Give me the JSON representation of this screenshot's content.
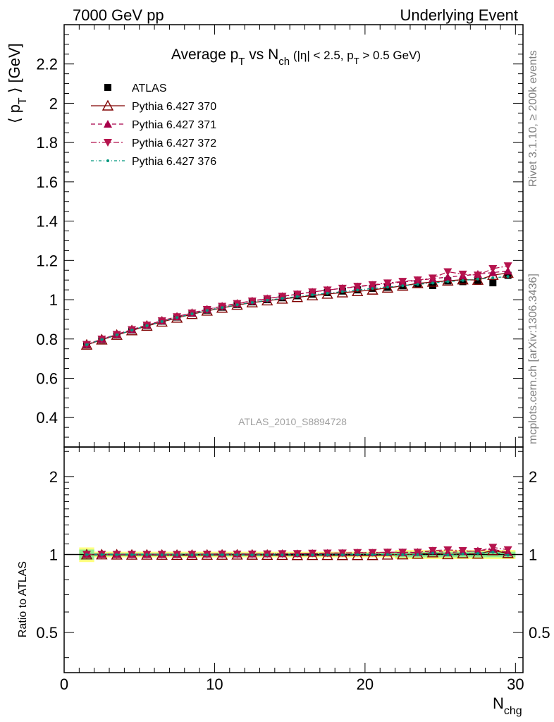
{
  "header": {
    "left": "7000 GeV pp",
    "right": "Underlying Event"
  },
  "side_text": {
    "rivet": "Rivet 3.1.10, ≥ 200k events",
    "mcplots": "mcplots.cern.ch [arXiv:1306.3436]"
  },
  "analysis_label": "ATLAS_2010_S8894728",
  "chart_data": [
    {
      "type": "line",
      "title": "Average p_T vs N_ch (|η| < 2.5, p_T > 0.5 GeV)",
      "xlabel": "N_chg",
      "ylabel": "⟨ p_T ⟩ [GeV]",
      "xlim": [
        0,
        30.5
      ],
      "ylim": [
        0.25,
        2.4
      ],
      "x": [
        1.5,
        2.5,
        3.5,
        4.5,
        5.5,
        6.5,
        7.5,
        8.5,
        9.5,
        10.5,
        11.5,
        12.5,
        13.5,
        14.5,
        15.5,
        16.5,
        17.5,
        18.5,
        19.5,
        20.5,
        21.5,
        22.5,
        23.5,
        24.5,
        25.5,
        26.5,
        27.5,
        28.5,
        29.5
      ],
      "series": [
        {
          "name": "ATLAS",
          "color": "#000000",
          "marker": "square",
          "values": [
            0.771,
            0.797,
            0.822,
            0.846,
            0.869,
            0.891,
            0.912,
            0.931,
            0.947,
            0.962,
            0.976,
            0.989,
            1.0,
            1.01,
            1.02,
            1.028,
            1.036,
            1.044,
            1.05,
            1.058,
            1.063,
            1.071,
            1.078,
            1.072,
            1.096,
            1.092,
            1.094,
            1.086,
            1.124
          ]
        },
        {
          "name": "Pythia 6.427 370",
          "color": "#800000",
          "marker": "open-triangle-up",
          "line": "solid",
          "values": [
            0.77,
            0.796,
            0.82,
            0.843,
            0.866,
            0.887,
            0.907,
            0.926,
            0.943,
            0.958,
            0.973,
            0.985,
            0.995,
            1.004,
            1.012,
            1.021,
            1.029,
            1.036,
            1.042,
            1.05,
            1.06,
            1.07,
            1.083,
            1.09,
            1.096,
            1.102,
            1.1,
            1.125,
            1.136
          ]
        },
        {
          "name": "Pythia 6.427 371",
          "color": "#a8004a",
          "marker": "filled-triangle-up",
          "line": "dashed",
          "values": [
            0.773,
            0.799,
            0.824,
            0.848,
            0.871,
            0.893,
            0.914,
            0.933,
            0.951,
            0.967,
            0.981,
            0.994,
            1.006,
            1.017,
            1.028,
            1.039,
            1.049,
            1.058,
            1.066,
            1.074,
            1.082,
            1.09,
            1.098,
            1.107,
            1.115,
            1.122,
            1.13,
            1.138,
            1.146
          ]
        },
        {
          "name": "Pythia 6.427 372",
          "color": "#b5134d",
          "marker": "filled-triangle-down",
          "line": "dashdot",
          "values": [
            0.772,
            0.799,
            0.823,
            0.847,
            0.87,
            0.892,
            0.913,
            0.932,
            0.95,
            0.966,
            0.98,
            0.993,
            1.005,
            1.017,
            1.028,
            1.039,
            1.049,
            1.058,
            1.068,
            1.076,
            1.085,
            1.093,
            1.1,
            1.11,
            1.142,
            1.13,
            1.125,
            1.158,
            1.172
          ]
        },
        {
          "name": "Pythia 6.427 376",
          "color": "#00967d",
          "marker": "small-dot",
          "line": "dashdotted",
          "values": [
            0.771,
            0.797,
            0.821,
            0.845,
            0.868,
            0.889,
            0.909,
            0.928,
            0.945,
            0.96,
            0.974,
            0.986,
            0.997,
            1.007,
            1.016,
            1.025,
            1.033,
            1.041,
            1.049,
            1.057,
            1.064,
            1.071,
            1.078,
            1.085,
            1.092,
            1.098,
            1.105,
            1.111,
            1.118
          ]
        }
      ],
      "legend_position": "top-left",
      "yticks": [
        "0.4",
        "0.6",
        "0.8",
        "1",
        "1.2",
        "1.4",
        "1.6",
        "1.8",
        "2",
        "2.2"
      ],
      "ytick_values": [
        0.4,
        0.6,
        0.8,
        1.0,
        1.2,
        1.4,
        1.6,
        1.8,
        2.0,
        2.2
      ]
    },
    {
      "type": "line",
      "title": "",
      "xlabel": "N_chg",
      "ylabel": "Ratio to ATLAS",
      "yscale": "log",
      "xlim": [
        0,
        30.5
      ],
      "ylim": [
        0.35,
        2.6
      ],
      "xticks": [
        "0",
        "10",
        "20",
        "30"
      ],
      "xtick_values": [
        0,
        10,
        20,
        30
      ],
      "yticks": [
        "0.5",
        "1",
        "2"
      ],
      "ytick_values": [
        0.5,
        1,
        2
      ],
      "band_colors": {
        "stat": "#90ee90",
        "total": "#ffff7f"
      }
    }
  ]
}
